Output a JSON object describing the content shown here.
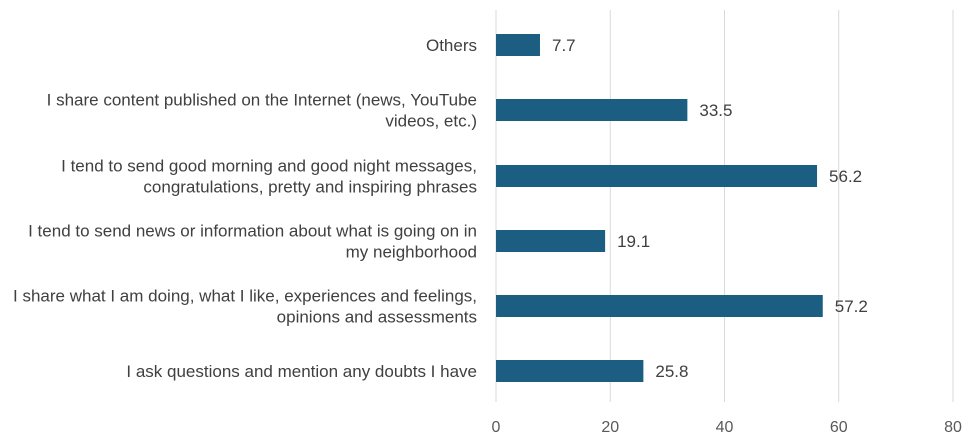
{
  "chart_data": {
    "type": "bar",
    "orientation": "horizontal",
    "categories": [
      "Others",
      "I share content published on the Internet (news, YouTube videos, etc.)",
      "I tend to send good morning and good night messages, congratulations, pretty and inspiring phrases",
      "I tend to send news or information about what is going on in my neighborhood",
      "I share what I am doing, what I like, experiences and feelings, opinions and assessments",
      "I ask questions and mention any doubts I have"
    ],
    "category_lines": [
      [
        "Others"
      ],
      [
        "I share content published on the Internet (news, YouTube",
        "videos, etc.)"
      ],
      [
        "I tend to send good morning and good night messages,",
        "congratulations, pretty and inspiring phrases"
      ],
      [
        "I tend to send news or information about what is going on in",
        "my neighborhood"
      ],
      [
        "I share what I am doing, what I like, experiences and feelings,",
        "opinions and assessments"
      ],
      [
        "I ask questions and mention any doubts I have"
      ]
    ],
    "values": [
      7.7,
      33.5,
      56.2,
      19.1,
      57.2,
      25.8
    ],
    "value_labels": [
      "7.7",
      "33.5",
      "56.2",
      "19.1",
      "57.2",
      "25.8"
    ],
    "xlim": [
      0,
      80
    ],
    "x_ticks": [
      0,
      20,
      40,
      60,
      80
    ],
    "x_tick_labels": [
      "0",
      "20",
      "40",
      "60",
      "80"
    ],
    "grid": "vertical",
    "legend": "none",
    "title": "",
    "xlabel": "",
    "ylabel": "",
    "colors": {
      "bar": "#1b5e82",
      "grid": "#d9d9d9",
      "text": "#404040"
    }
  }
}
